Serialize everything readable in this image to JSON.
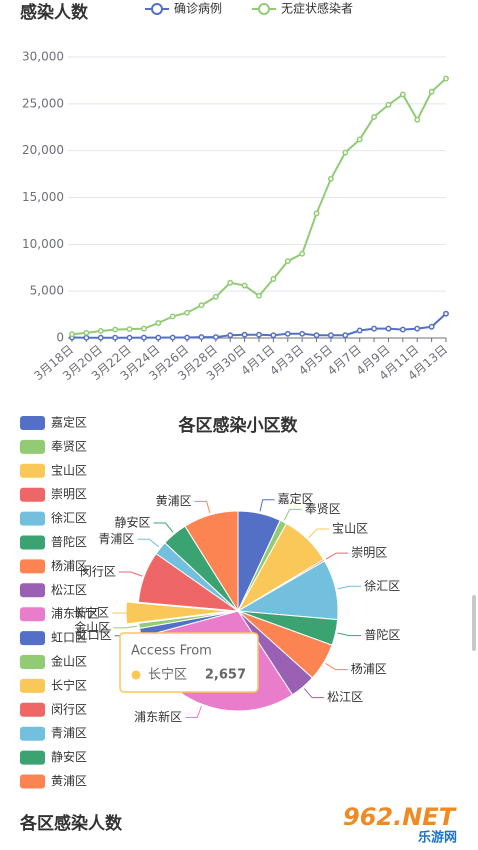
{
  "chart_data": [
    {
      "type": "line",
      "title": "感染人数",
      "categories": [
        "3月18日",
        null,
        "3月20日",
        null,
        "3月22日",
        null,
        "3月24日",
        null,
        "3月26日",
        null,
        "3月28日",
        null,
        "3月30日",
        null,
        "4月1日",
        null,
        "4月3日",
        null,
        "4月5日",
        null,
        "4月7日",
        null,
        "4月9日",
        null,
        "4月11日",
        null,
        "4月13日"
      ],
      "series": [
        {
          "name": "确诊病例",
          "color": "#5470c6",
          "values": [
            50,
            30,
            30,
            30,
            30,
            40,
            40,
            50,
            50,
            100,
            100,
            300,
            350,
            350,
            300,
            450,
            450,
            300,
            300,
            300,
            800,
            1000,
            1000,
            900,
            1000,
            1200,
            2600
          ]
        },
        {
          "name": "无症状感染者",
          "color": "#91cc75",
          "values": [
            400,
            550,
            750,
            900,
            950,
            1000,
            1600,
            2300,
            2700,
            3500,
            4400,
            5900,
            5600,
            4500,
            6300,
            8200,
            9000,
            13300,
            17000,
            19800,
            21200,
            23600,
            24900,
            26000,
            23300,
            26300,
            27700
          ]
        }
      ],
      "ylim": [
        0,
        30000
      ],
      "yticks": [
        0,
        {
          "value": 5000,
          "label": "5,000"
        },
        {
          "value": 10000,
          "label": "10,000"
        },
        {
          "value": 15000,
          "label": "15,000"
        },
        {
          "value": 20000,
          "label": "20,000"
        },
        {
          "value": 25000,
          "label": "25,000"
        },
        {
          "value": 30000,
          "label": "30,000"
        }
      ],
      "grid": true,
      "legend": "top"
    },
    {
      "type": "pie",
      "title": "各区感染小区数",
      "categories": [
        "嘉定区",
        "奉贤区",
        "宝山区",
        "崇明区",
        "徐汇区",
        "普陀区",
        "杨浦区",
        "松江区",
        "浦东新区",
        "虹口区",
        "金山区",
        "长宁区",
        "闵行区",
        "青浦区",
        "静安区",
        "黄浦区"
      ],
      "values": [
        5530,
        880,
        6640,
        220,
        7740,
        3320,
        4870,
        3320,
        23900,
        1110,
        660,
        2657,
        6640,
        1770,
        3320,
        7080
      ],
      "colors": [
        "#5470c6",
        "#91cc75",
        "#fac858",
        "#ee6666",
        "#73c0de",
        "#3ba272",
        "#fc8452",
        "#9a60b4",
        "#ea7ccc",
        "#5470c6",
        "#91cc75",
        "#fac858",
        "#ee6666",
        "#73c0de",
        "#3ba272",
        "#fc8452"
      ],
      "legend": "left",
      "tooltip": {
        "title": "Access From",
        "category": "长宁区",
        "label": "2,657"
      }
    }
  ],
  "next_heading": "各区感染人数",
  "watermark": {
    "logo": "962.NET",
    "text": "乐游网"
  }
}
